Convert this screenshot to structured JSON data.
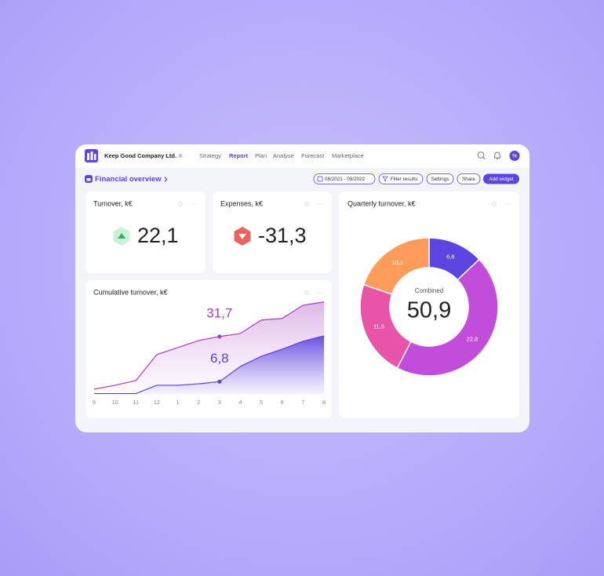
{
  "header": {
    "company": "Keep Good Company Ltd.",
    "nav": [
      "Strategy",
      "Report",
      "Plan",
      "Analyse",
      "Forecast",
      "Marketplace"
    ],
    "active_nav": 1,
    "avatar": "TK"
  },
  "toolbar": {
    "title": "Financial overview",
    "date_range": "08/2021 - 09/2022",
    "buttons": [
      "Filter results",
      "Settings",
      "Share",
      "Add widget"
    ]
  },
  "widgets": [
    {
      "title": "Turnover, k€",
      "value": "22,1",
      "trend": "up"
    },
    {
      "title": "Expenses, k€",
      "value": "-31,3",
      "trend": "down"
    }
  ],
  "chart_data": [
    {
      "type": "area",
      "title": "Cumulative turnover, k€",
      "categories": [
        "9",
        "10",
        "11",
        "12",
        "1",
        "2",
        "3",
        "4",
        "5",
        "6",
        "7",
        "8"
      ],
      "ylim": [
        0,
        52
      ],
      "series": [
        {
          "color": "#a93ec4",
          "values": [
            2.6,
            4.8,
            7.4,
            21.7,
            25.6,
            29.5,
            31.7,
            33.4,
            40.8,
            41.7,
            49.0,
            50.8
          ],
          "value_labels": [
            null,
            null,
            null,
            null,
            null,
            null,
            "31,7",
            null,
            null,
            null,
            null,
            null
          ]
        },
        {
          "color": "#5b3fe0",
          "values": [
            0.2,
            0.2,
            0.2,
            4.8,
            4.8,
            5.6,
            6.8,
            15.2,
            20.8,
            24.7,
            29.1,
            32.1
          ],
          "value_labels": [
            null,
            null,
            null,
            null,
            null,
            null,
            "6,8",
            null,
            null,
            null,
            null,
            null
          ]
        }
      ]
    },
    {
      "type": "pie",
      "title": "Quarterly turnover, k€",
      "donut": true,
      "values": [
        6.6,
        22.8,
        11.5,
        10.1
      ],
      "value_labels": [
        "6,6",
        "22,8",
        "11,5",
        "10,1"
      ],
      "colors": [
        "#5b44e0",
        "#c24ddb",
        "#e855a8",
        "#ff9c59"
      ],
      "center_label": "Combined",
      "center_value": "50,9"
    }
  ]
}
